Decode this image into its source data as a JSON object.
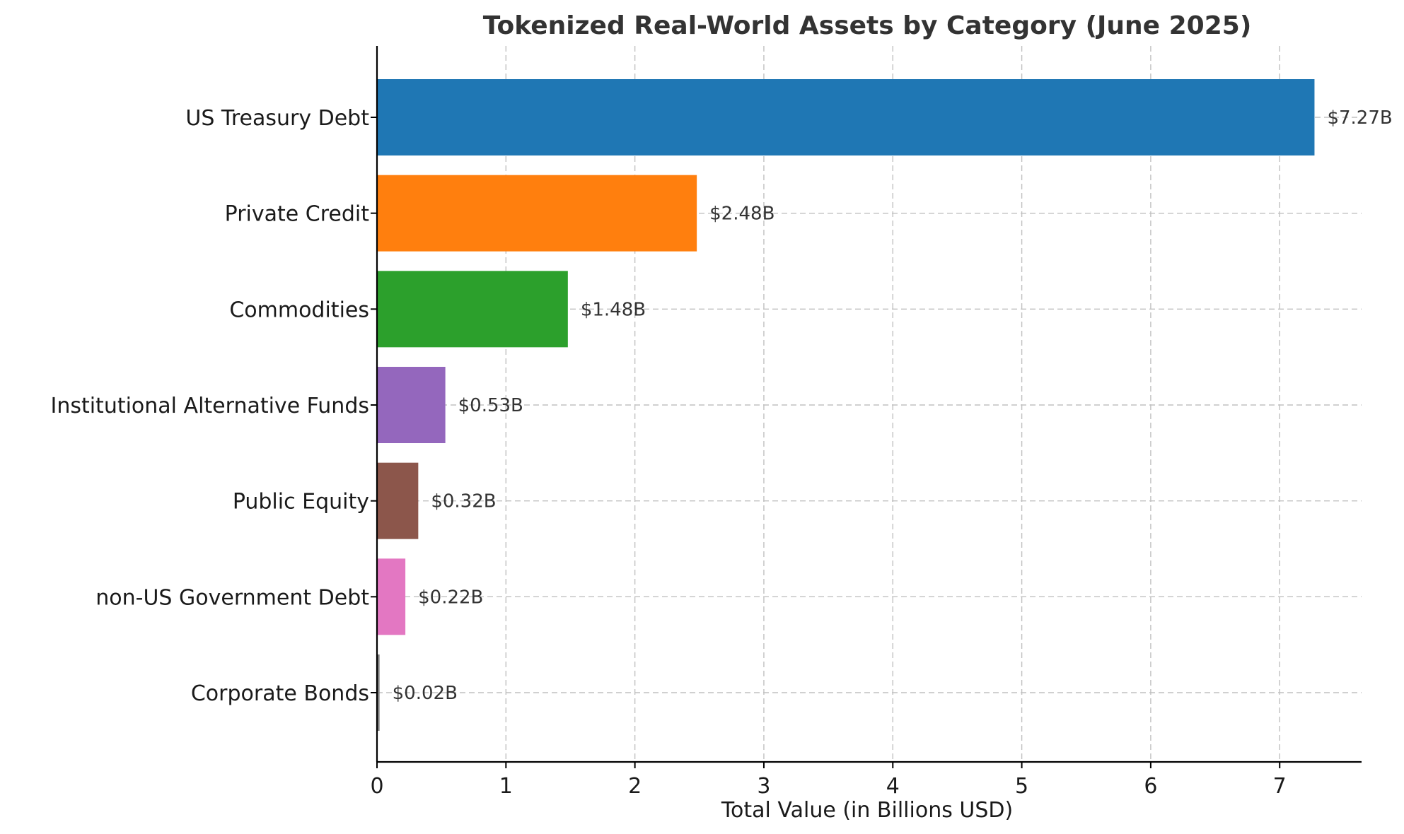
{
  "chart_data": {
    "type": "bar",
    "orientation": "horizontal",
    "title": "Tokenized Real-World Assets by Category (June 2025)",
    "xlabel": "Total Value (in Billions USD)",
    "ylabel": "",
    "xlim": [
      0,
      7.635
    ],
    "xticks": [
      "0",
      "1",
      "2",
      "3",
      "4",
      "5",
      "6",
      "7"
    ],
    "grid": true,
    "categories": [
      "US Treasury Debt",
      "Private Credit",
      "Commodities",
      "Institutional Alternative Funds",
      "Public Equity",
      "non-US Government Debt",
      "Corporate Bonds"
    ],
    "values": [
      7.27,
      2.48,
      1.48,
      0.53,
      0.32,
      0.22,
      0.02
    ],
    "data_labels": [
      "$7.27B",
      "$2.48B",
      "$1.48B",
      "$0.53B",
      "$0.32B",
      "$0.22B",
      "$0.02B"
    ],
    "colors": [
      "#1f77b4",
      "#ff7f0e",
      "#2ca02c",
      "#9467bd",
      "#8c564b",
      "#e377c2",
      "#7f7f7f"
    ]
  }
}
